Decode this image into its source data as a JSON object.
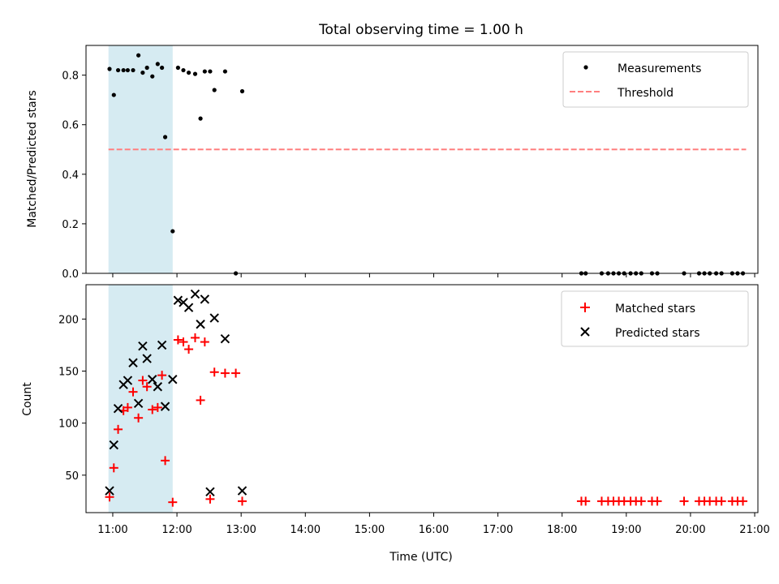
{
  "figure": {
    "title": "Total observing time = 1.00 h",
    "xlabel": "Time (UTC)",
    "shaded_span": [
      "10:56",
      "11:56"
    ],
    "shade_color": "#add8e6"
  },
  "chart_data": [
    {
      "type": "scatter",
      "ylabel": "Matched/Predicted stars",
      "xlim": [
        "10:35",
        "21:03"
      ],
      "ylim": [
        0,
        0.92
      ],
      "yticks": [
        0.0,
        0.2,
        0.4,
        0.6,
        0.8
      ],
      "ytick_labels": [
        "0.0",
        "0.2",
        "0.4",
        "0.6",
        "0.8"
      ],
      "legend": "top-right",
      "series": [
        {
          "name": "Measurements",
          "marker": "dot",
          "color": "#000000",
          "points": [
            [
              "10:57",
              0.825
            ],
            [
              "11:01",
              0.72
            ],
            [
              "11:05",
              0.82
            ],
            [
              "11:10",
              0.82
            ],
            [
              "11:14",
              0.82
            ],
            [
              "11:19",
              0.82
            ],
            [
              "11:24",
              0.88
            ],
            [
              "11:28",
              0.81
            ],
            [
              "11:32",
              0.83
            ],
            [
              "11:37",
              0.795
            ],
            [
              "11:42",
              0.845
            ],
            [
              "11:46",
              0.83
            ],
            [
              "11:49",
              0.55
            ],
            [
              "11:56",
              0.17
            ],
            [
              "12:01",
              0.83
            ],
            [
              "12:06",
              0.82
            ],
            [
              "12:11",
              0.81
            ],
            [
              "12:17",
              0.805
            ],
            [
              "12:22",
              0.625
            ],
            [
              "12:26",
              0.815
            ],
            [
              "12:31",
              0.815
            ],
            [
              "12:35",
              0.74
            ],
            [
              "12:45",
              0.815
            ],
            [
              "12:55",
              0.0
            ],
            [
              "13:01",
              0.735
            ],
            [
              "18:18",
              0.0
            ],
            [
              "18:22",
              0.0
            ],
            [
              "18:37",
              0.0
            ],
            [
              "18:43",
              0.0
            ],
            [
              "18:48",
              0.0
            ],
            [
              "18:53",
              0.0
            ],
            [
              "18:58",
              0.0
            ],
            [
              "19:04",
              0.0
            ],
            [
              "19:09",
              0.0
            ],
            [
              "19:14",
              0.0
            ],
            [
              "19:24",
              0.0
            ],
            [
              "19:29",
              0.0
            ],
            [
              "19:54",
              0.0
            ],
            [
              "20:08",
              0.0
            ],
            [
              "20:13",
              0.0
            ],
            [
              "20:18",
              0.0
            ],
            [
              "20:24",
              0.0
            ],
            [
              "20:29",
              0.0
            ],
            [
              "20:39",
              0.0
            ],
            [
              "20:44",
              0.0
            ],
            [
              "20:49",
              0.0
            ]
          ]
        },
        {
          "name": "Threshold",
          "marker": "dashed-line",
          "color": "#ff7f7f",
          "points": [
            [
              "10:56",
              0.5
            ],
            [
              "20:52",
              0.5
            ]
          ]
        }
      ]
    },
    {
      "type": "scatter",
      "ylabel": "Count",
      "xlim": [
        "10:35",
        "21:03"
      ],
      "ylim": [
        14,
        233
      ],
      "yticks": [
        50,
        100,
        150,
        200
      ],
      "ytick_labels": [
        "50",
        "100",
        "150",
        "200"
      ],
      "xticks": [
        "11:00",
        "12:00",
        "13:00",
        "14:00",
        "15:00",
        "16:00",
        "17:00",
        "18:00",
        "19:00",
        "20:00",
        "21:00"
      ],
      "legend": "top-right",
      "series": [
        {
          "name": "Matched stars",
          "marker": "plus",
          "color": "#ff0000",
          "points": [
            [
              "10:57",
              29
            ],
            [
              "11:01",
              57
            ],
            [
              "11:05",
              94
            ],
            [
              "11:10",
              112
            ],
            [
              "11:14",
              115
            ],
            [
              "11:19",
              130
            ],
            [
              "11:24",
              105
            ],
            [
              "11:28",
              141
            ],
            [
              "11:32",
              135
            ],
            [
              "11:37",
              113
            ],
            [
              "11:42",
              115
            ],
            [
              "11:46",
              146
            ],
            [
              "11:49",
              64
            ],
            [
              "11:56",
              24
            ],
            [
              "12:01",
              180
            ],
            [
              "12:06",
              178
            ],
            [
              "12:11",
              171
            ],
            [
              "12:17",
              182
            ],
            [
              "12:22",
              122
            ],
            [
              "12:26",
              178
            ],
            [
              "12:31",
              27
            ],
            [
              "12:35",
              149
            ],
            [
              "12:45",
              148
            ],
            [
              "12:55",
              148
            ],
            [
              "13:01",
              25
            ],
            [
              "18:18",
              25
            ],
            [
              "18:22",
              25
            ],
            [
              "18:37",
              25
            ],
            [
              "18:43",
              25
            ],
            [
              "18:48",
              25
            ],
            [
              "18:53",
              25
            ],
            [
              "18:58",
              25
            ],
            [
              "19:04",
              25
            ],
            [
              "19:09",
              25
            ],
            [
              "19:14",
              25
            ],
            [
              "19:24",
              25
            ],
            [
              "19:29",
              25
            ],
            [
              "19:54",
              25
            ],
            [
              "20:08",
              25
            ],
            [
              "20:13",
              25
            ],
            [
              "20:18",
              25
            ],
            [
              "20:24",
              25
            ],
            [
              "20:29",
              25
            ],
            [
              "20:39",
              25
            ],
            [
              "20:44",
              25
            ],
            [
              "20:49",
              25
            ]
          ]
        },
        {
          "name": "Predicted stars",
          "marker": "x",
          "color": "#000000",
          "points": [
            [
              "10:57",
              35
            ],
            [
              "11:01",
              79
            ],
            [
              "11:05",
              114
            ],
            [
              "11:10",
              137
            ],
            [
              "11:14",
              141
            ],
            [
              "11:19",
              158
            ],
            [
              "11:24",
              119
            ],
            [
              "11:28",
              174
            ],
            [
              "11:32",
              162
            ],
            [
              "11:37",
              142
            ],
            [
              "11:42",
              135
            ],
            [
              "11:46",
              175
            ],
            [
              "11:49",
              116
            ],
            [
              "11:56",
              142
            ],
            [
              "12:01",
              218
            ],
            [
              "12:06",
              216
            ],
            [
              "12:11",
              211
            ],
            [
              "12:17",
              224
            ],
            [
              "12:22",
              195
            ],
            [
              "12:26",
              219
            ],
            [
              "12:31",
              34
            ],
            [
              "12:35",
              201
            ],
            [
              "12:45",
              181
            ],
            [
              "13:01",
              35
            ]
          ]
        }
      ]
    }
  ]
}
